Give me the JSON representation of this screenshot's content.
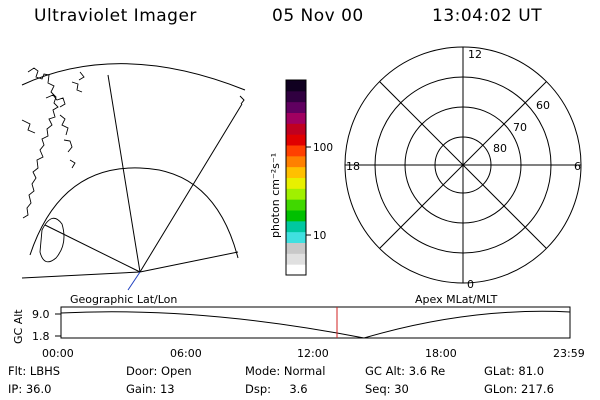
{
  "header": {
    "instrument": "Ultraviolet Imager",
    "date": "05 Nov 00",
    "time": "13:04:02 UT"
  },
  "colorbar": {
    "label": "photon cm⁻²s⁻¹",
    "ticks": [
      "100",
      "10"
    ],
    "scale": "log",
    "colors": [
      "#ffffff",
      "#e0e0e0",
      "#c8c8c8",
      "#40e0e0",
      "#00c8a0",
      "#00c000",
      "#40d800",
      "#a0f000",
      "#e8f000",
      "#ffc000",
      "#ff8000",
      "#ff4000",
      "#e00000",
      "#c00020",
      "#a00060",
      "#600060",
      "#300040",
      "#100020"
    ]
  },
  "panels": {
    "left_caption": "Geographic Lat/Lon",
    "right_caption": "Apex MLat/MLT"
  },
  "polar": {
    "mlt_labels": {
      "top": "12",
      "bottom": "0",
      "left": "18",
      "right": "6"
    },
    "lat_labels": [
      "80",
      "70",
      "60"
    ]
  },
  "altitude_plot": {
    "ylabel": "GC Alt",
    "yticks": [
      "9.0",
      "1.8"
    ],
    "xticks": [
      "00:00",
      "06:00",
      "12:00",
      "18:00",
      "23:59"
    ],
    "current_time_color": "#d02020"
  },
  "info": {
    "flt": {
      "label": "Flt:",
      "value": "LBHS"
    },
    "ip": {
      "label": "IP:",
      "value": "36.0"
    },
    "door": {
      "label": "Door:",
      "value": "Open"
    },
    "gain": {
      "label": "Gain:",
      "value": "13"
    },
    "mode": {
      "label": "Mode:",
      "value": "Normal"
    },
    "dsp": {
      "label": "Dsp:",
      "value": "3.6"
    },
    "gcalt": {
      "label": "GC Alt:",
      "value": "3.6 Re"
    },
    "seq": {
      "label": "Seq:",
      "value": "30"
    },
    "glat": {
      "label": "GLat:",
      "value": "81.0"
    },
    "glon": {
      "label": "GLon:",
      "value": "217.6"
    }
  }
}
